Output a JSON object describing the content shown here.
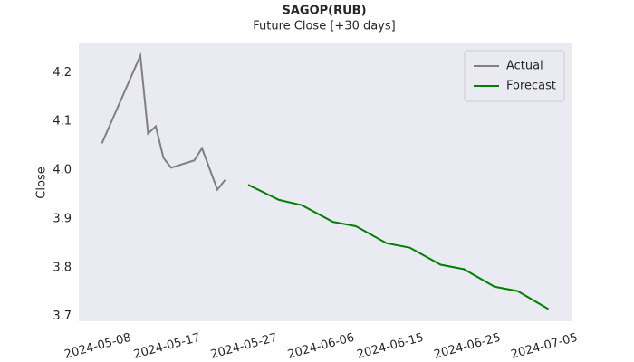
{
  "chart_data": {
    "type": "line",
    "title": "SAGOP(RUB)",
    "subtitle": "Future Close [+30 days]",
    "y_label": "Close",
    "series": [
      {
        "name": "Actual",
        "color": "#808080",
        "x": [
          "2024-05-08",
          "2024-05-13",
          "2024-05-14",
          "2024-05-15",
          "2024-05-16",
          "2024-05-17",
          "2024-05-20",
          "2024-05-21",
          "2024-05-23",
          "2024-05-24"
        ],
        "values": [
          4.055,
          4.235,
          4.075,
          4.09,
          4.025,
          4.005,
          4.02,
          4.045,
          3.96,
          3.98
        ]
      },
      {
        "name": "Forecast",
        "color": "#008000",
        "x": [
          "2024-05-27",
          "2024-05-31",
          "2024-06-03",
          "2024-06-07",
          "2024-06-10",
          "2024-06-14",
          "2024-06-17",
          "2024-06-21",
          "2024-06-24",
          "2024-06-28",
          "2024-07-01",
          "2024-07-05"
        ],
        "values": [
          3.97,
          3.939,
          3.928,
          3.894,
          3.885,
          3.85,
          3.841,
          3.806,
          3.797,
          3.761,
          3.752,
          3.715
        ]
      }
    ],
    "xlim": [
      "2024-05-05",
      "2024-07-08"
    ],
    "xticks": [
      "2024-05-08",
      "2024-05-17",
      "2024-05-27",
      "2024-06-06",
      "2024-06-15",
      "2024-06-25",
      "2024-07-05"
    ],
    "ylim": [
      3.69,
      4.26
    ],
    "yticks": [
      3.7,
      3.8,
      3.9,
      {
        "value": 4,
        "label": "4.0"
      },
      4.1,
      4.2
    ],
    "grid": false,
    "legend": "upper right",
    "background": "#eaeaf2"
  }
}
